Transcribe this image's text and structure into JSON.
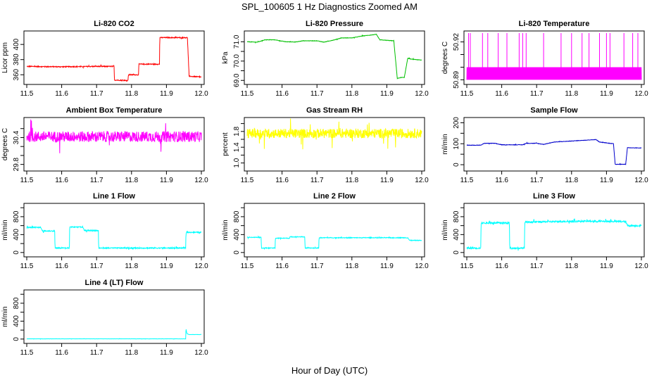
{
  "figure": {
    "title": "SPL_100605  1 Hz Diagnostics Zoomed AM",
    "xlabel": "Hour of Day (UTC)"
  },
  "chart_data": [
    {
      "type": "line",
      "title": "Li-820 CO2",
      "ylabel": "Licor ppm",
      "color": "#ff0000",
      "xlim": [
        11.5,
        12.0
      ],
      "ylim": [
        350,
        415
      ],
      "xticks": [
        "11.5",
        "11.6",
        "11.7",
        "11.8",
        "11.9",
        "12.0"
      ],
      "yticks": [
        360,
        380,
        400
      ],
      "series": [
        {
          "x": [
            11.5,
            11.6,
            11.7,
            11.75,
            11.751,
            11.79,
            11.791,
            11.82,
            11.821,
            11.88,
            11.881,
            11.96,
            11.965,
            12.0
          ],
          "y": [
            371,
            370.5,
            371,
            371,
            353,
            352.5,
            360,
            360,
            374,
            374,
            409,
            409,
            358,
            357
          ]
        }
      ],
      "noise": 0.6
    },
    {
      "type": "line",
      "title": "Li-820 Pressure",
      "ylabel": "kPa",
      "color": "#00c000",
      "xlim": [
        11.5,
        12.0
      ],
      "ylim": [
        68.9,
        71.45
      ],
      "xticks": [
        "11.5",
        "11.6",
        "11.7",
        "11.8",
        "11.9",
        "12.0"
      ],
      "yticks": [
        69.0,
        69.5,
        70.0,
        70.5,
        71.0
      ],
      "ytick_labels": [
        "69.0",
        "",
        "70.0",
        "",
        "71.0"
      ],
      "series": [
        {
          "x": [
            11.5,
            11.53,
            11.55,
            11.58,
            11.61,
            11.64,
            11.66,
            11.7,
            11.72,
            11.75,
            11.77,
            11.8,
            11.83,
            11.87,
            11.88,
            11.92,
            11.93,
            11.94,
            11.95,
            11.96,
            11.97,
            12.0
          ],
          "y": [
            71.0,
            70.98,
            71.1,
            71.1,
            71.0,
            70.99,
            71.05,
            71.05,
            70.98,
            71.1,
            71.2,
            71.2,
            71.3,
            71.38,
            71.1,
            71.05,
            69.1,
            69.15,
            69.15,
            70.15,
            70.1,
            70.05
          ]
        }
      ],
      "noise": 0.01
    },
    {
      "type": "line",
      "title": "Li-820 Temperature",
      "ylabel": "degrees C",
      "color": "#ff00ff",
      "xlim": [
        11.5,
        12.0
      ],
      "ylim": [
        50.888,
        50.927
      ],
      "xticks": [
        "11.5",
        "11.6",
        "11.7",
        "11.8",
        "11.9",
        "12.0"
      ],
      "yticks": [
        50.89,
        50.9,
        50.91,
        50.92
      ],
      "ytick_labels": [
        "50.89",
        "",
        "",
        "50.92"
      ],
      "series": [
        {
          "x": [
            11.5,
            12.0
          ],
          "y": [
            50.895,
            50.895
          ]
        }
      ],
      "band": [
        50.89,
        50.9
      ],
      "spikes": [
        11.505,
        11.51,
        11.545,
        11.56,
        11.59,
        11.615,
        11.65,
        11.66,
        11.67,
        11.72,
        11.77,
        11.8,
        11.83,
        11.85,
        11.88,
        11.9,
        11.91,
        11.95,
        11.975,
        11.99
      ],
      "spike_top": 50.927
    },
    {
      "type": "line",
      "title": "Ambient Box Temperature",
      "ylabel": "degrees C",
      "color": "#ff00ff",
      "xlim": [
        11.5,
        12.0
      ],
      "ylim": [
        29.7,
        30.8
      ],
      "xticks": [
        "11.5",
        "11.6",
        "11.7",
        "11.8",
        "11.9",
        "12.0"
      ],
      "yticks": [
        29.8,
        30.0,
        30.2,
        30.4,
        30.6
      ],
      "ytick_labels": [
        "29.8",
        "",
        "",
        "30.4",
        ""
      ],
      "series": [
        {
          "x": [
            11.5,
            12.0
          ],
          "y": [
            30.42,
            30.42
          ]
        }
      ],
      "noise": 0.12
    },
    {
      "type": "line",
      "title": "Gas Stream RH",
      "ylabel": "percent",
      "color": "#ffff00",
      "xlim": [
        11.5,
        12.0
      ],
      "ylim": [
        0.85,
        2.1
      ],
      "xticks": [
        "11.5",
        "11.6",
        "11.7",
        "11.8",
        "11.9",
        "12.0"
      ],
      "yticks": [
        1.0,
        1.2,
        1.4,
        1.6,
        1.8,
        2.0
      ],
      "ytick_labels": [
        "1.0",
        "",
        "1.4",
        "",
        "1.8",
        ""
      ],
      "series": [
        {
          "x": [
            11.5,
            12.0
          ],
          "y": [
            1.75,
            1.75
          ]
        }
      ],
      "noise": 0.12
    },
    {
      "type": "line",
      "title": "Sample Flow",
      "ylabel": "ml/min",
      "color": "#0000cc",
      "xlim": [
        11.5,
        12.0
      ],
      "ylim": [
        -20,
        215
      ],
      "xticks": [
        "11.5",
        "11.6",
        "11.7",
        "11.8",
        "11.9",
        "12.0"
      ],
      "yticks": [
        0,
        50,
        100,
        150,
        200
      ],
      "ytick_labels": [
        "0",
        "",
        "100",
        "",
        "200"
      ],
      "series": [
        {
          "x": [
            11.5,
            11.54,
            11.55,
            11.58,
            11.6,
            11.66,
            11.67,
            11.7,
            11.72,
            11.75,
            11.8,
            11.87,
            11.88,
            11.92,
            11.925,
            11.955,
            11.96,
            11.97,
            12.0
          ],
          "y": [
            93,
            93,
            102,
            102,
            95,
            95,
            102,
            102,
            97,
            108,
            113,
            120,
            108,
            100,
            2,
            2,
            82,
            80,
            80
          ]
        }
      ],
      "noise": 1.0
    },
    {
      "type": "line",
      "title": "Line 1 Flow",
      "ylabel": "ml/min",
      "color": "#00ffff",
      "xlim": [
        11.5,
        12.0
      ],
      "ylim": [
        -50,
        1050
      ],
      "xticks": [
        "11.5",
        "11.6",
        "11.7",
        "11.8",
        "11.9",
        "12.0"
      ],
      "yticks": [
        0,
        200,
        400,
        600,
        800,
        1000
      ],
      "ytick_labels": [
        "0",
        "",
        "400",
        "",
        "800",
        ""
      ],
      "series": [
        {
          "x": [
            11.5,
            11.54,
            11.545,
            11.58,
            11.581,
            11.622,
            11.623,
            11.66,
            11.665,
            11.705,
            11.706,
            11.955,
            11.956,
            12.0
          ],
          "y": [
            560,
            560,
            480,
            480,
            100,
            100,
            570,
            570,
            490,
            490,
            100,
            100,
            450,
            450
          ]
        }
      ],
      "noise": 12
    },
    {
      "type": "line",
      "title": "Line 2 Flow",
      "ylabel": "ml/min",
      "color": "#00ffff",
      "xlim": [
        11.5,
        12.0
      ],
      "ylim": [
        -50,
        1050
      ],
      "xticks": [
        "11.5",
        "11.6",
        "11.7",
        "11.8",
        "11.9",
        "12.0"
      ],
      "yticks": [
        0,
        200,
        400,
        600,
        800,
        1000
      ],
      "ytick_labels": [
        "0",
        "",
        "400",
        "",
        "800",
        ""
      ],
      "series": [
        {
          "x": [
            11.5,
            11.54,
            11.541,
            11.58,
            11.581,
            11.622,
            11.623,
            11.665,
            11.666,
            11.705,
            11.706,
            11.96,
            11.965,
            12.0
          ],
          "y": [
            340,
            340,
            100,
            100,
            320,
            320,
            350,
            350,
            100,
            100,
            330,
            330,
            270,
            270
          ]
        }
      ],
      "noise": 8
    },
    {
      "type": "line",
      "title": "Line 3 Flow",
      "ylabel": "ml/min",
      "color": "#00ffff",
      "xlim": [
        11.5,
        12.0
      ],
      "ylim": [
        -50,
        1050
      ],
      "xticks": [
        "11.5",
        "11.6",
        "11.7",
        "11.8",
        "11.9",
        "12.0"
      ],
      "yticks": [
        0,
        200,
        400,
        600,
        800,
        1000
      ],
      "ytick_labels": [
        "0",
        "",
        "400",
        "",
        "800",
        ""
      ],
      "series": [
        {
          "x": [
            11.5,
            11.54,
            11.541,
            11.622,
            11.623,
            11.665,
            11.666,
            11.75,
            11.85,
            11.955,
            11.96,
            12.0
          ],
          "y": [
            100,
            100,
            660,
            660,
            100,
            100,
            680,
            690,
            700,
            690,
            600,
            600
          ]
        }
      ],
      "noise": 18
    },
    {
      "type": "line",
      "title": "Line 4 (LT) Flow",
      "ylabel": "ml/min",
      "color": "#00ffff",
      "xlim": [
        11.5,
        12.0
      ],
      "ylim": [
        -50,
        1050
      ],
      "xticks": [
        "11.5",
        "11.6",
        "11.7",
        "11.8",
        "11.9",
        "12.0"
      ],
      "yticks": [
        0,
        200,
        400,
        600,
        800,
        1000
      ],
      "ytick_labels": [
        "0",
        "",
        "400",
        "",
        "800",
        ""
      ],
      "series": [
        {
          "x": [
            11.5,
            11.955,
            11.956,
            11.958,
            11.959,
            11.965,
            12.0
          ],
          "y": [
            5,
            5,
            230,
            150,
            120,
            100,
            100
          ]
        }
      ],
      "noise": 2
    }
  ]
}
